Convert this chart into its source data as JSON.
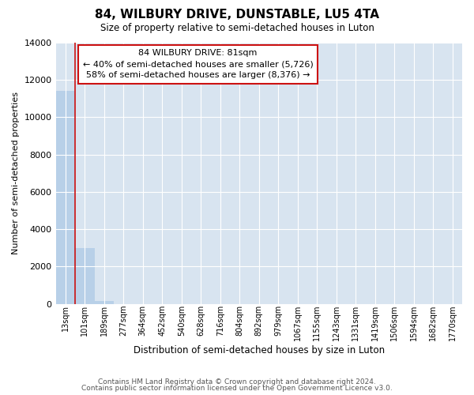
{
  "title": "84, WILBURY DRIVE, DUNSTABLE, LU5 4TA",
  "subtitle": "Size of property relative to semi-detached houses in Luton",
  "xlabel": "Distribution of semi-detached houses by size in Luton",
  "ylabel": "Number of semi-detached properties",
  "annotation_line1": "84 WILBURY DRIVE: 81sqm",
  "annotation_line2": "← 40% of semi-detached houses are smaller (5,726)",
  "annotation_line3": "58% of semi-detached houses are larger (8,376) →",
  "footer_line1": "Contains HM Land Registry data © Crown copyright and database right 2024.",
  "footer_line2": "Contains public sector information licensed under the Open Government Licence v3.0.",
  "bar_color": "#b8d0e8",
  "vline_color": "#cc1111",
  "annotation_box_edgecolor": "#cc1111",
  "grid_color": "#d8e4f0",
  "background_color": "#ffffff",
  "categories": [
    "13sqm",
    "101sqm",
    "189sqm",
    "277sqm",
    "364sqm",
    "452sqm",
    "540sqm",
    "628sqm",
    "716sqm",
    "804sqm",
    "892sqm",
    "979sqm",
    "1067sqm",
    "1155sqm",
    "1243sqm",
    "1331sqm",
    "1419sqm",
    "1506sqm",
    "1594sqm",
    "1682sqm",
    "1770sqm"
  ],
  "values": [
    11400,
    3000,
    130,
    0,
    0,
    0,
    0,
    0,
    0,
    0,
    0,
    0,
    0,
    0,
    0,
    0,
    0,
    0,
    0,
    0,
    0
  ],
  "ylim": [
    0,
    14000
  ],
  "yticks": [
    0,
    2000,
    4000,
    6000,
    8000,
    10000,
    12000,
    14000
  ],
  "vline_position": 0.5
}
